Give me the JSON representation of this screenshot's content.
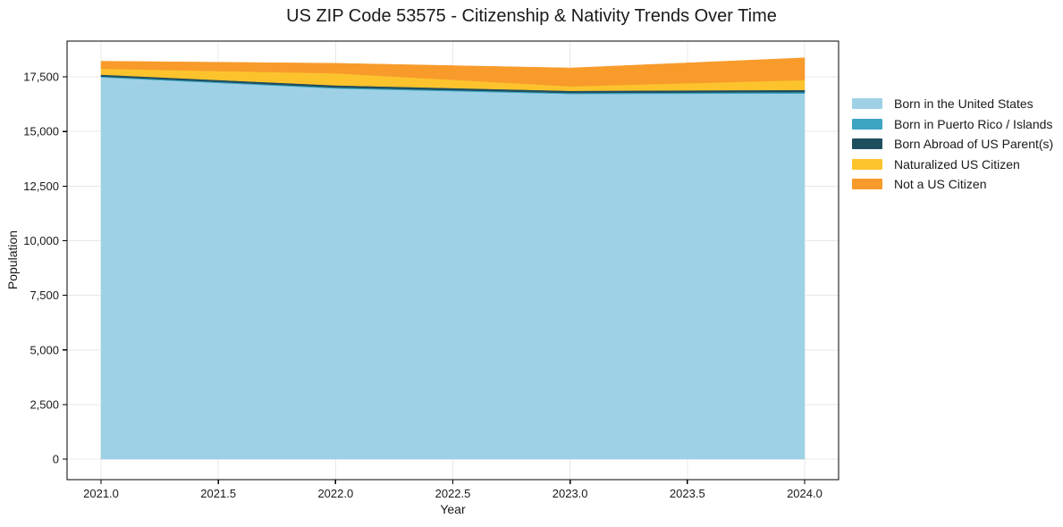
{
  "figure": {
    "background": "#ffffff"
  },
  "chart_data": {
    "type": "area",
    "stacked": true,
    "title": "US ZIP Code 53575 - Citizenship & Nativity Trends Over Time",
    "xlabel": "Year",
    "ylabel": "Population",
    "x": [
      2021,
      2022,
      2023,
      2024
    ],
    "series": [
      {
        "name": "Born in the United States",
        "color": "#9fd1e6",
        "values": [
          17480,
          16970,
          16720,
          16740
        ]
      },
      {
        "name": "Born in Puerto Rico / Islands",
        "color": "#3da4c2",
        "values": [
          40,
          45,
          45,
          60
        ]
      },
      {
        "name": "Born Abroad of US Parent(s)",
        "color": "#1f4e5f",
        "values": [
          85,
          100,
          100,
          105
        ]
      },
      {
        "name": "Naturalized US Citizen",
        "color": "#fcc32d",
        "values": [
          270,
          550,
          205,
          450
        ]
      },
      {
        "name": "Not a US Citizen",
        "color": "#f89b2b",
        "values": [
          345,
          460,
          840,
          1020
        ]
      }
    ],
    "totals": [
      18220,
      18125,
      17910,
      18375
    ],
    "xlim": [
      2020.855,
      2024.145
    ],
    "ylim": [
      -940,
      19140
    ],
    "xticks": [
      2021.0,
      2021.5,
      2022.0,
      2022.5,
      2023.0,
      2023.5,
      2024.0
    ],
    "xtick_labels": [
      "2021.0",
      "2021.5",
      "2022.0",
      "2022.5",
      "2023.0",
      "2023.5",
      "2024.0"
    ],
    "yticks": [
      0,
      2500,
      5000,
      7500,
      10000,
      12500,
      15000,
      17500
    ],
    "ytick_labels": [
      "0",
      "2,500",
      "5,000",
      "7,500",
      "10,000",
      "12,500",
      "15,000",
      "17,500"
    ],
    "grid": true,
    "legend_position": "right-outside"
  },
  "style": {
    "grid_color": "#e8e8e8",
    "spine_color": "#000000",
    "tick_color": "#000000",
    "text_color": "#1a1a1a"
  }
}
